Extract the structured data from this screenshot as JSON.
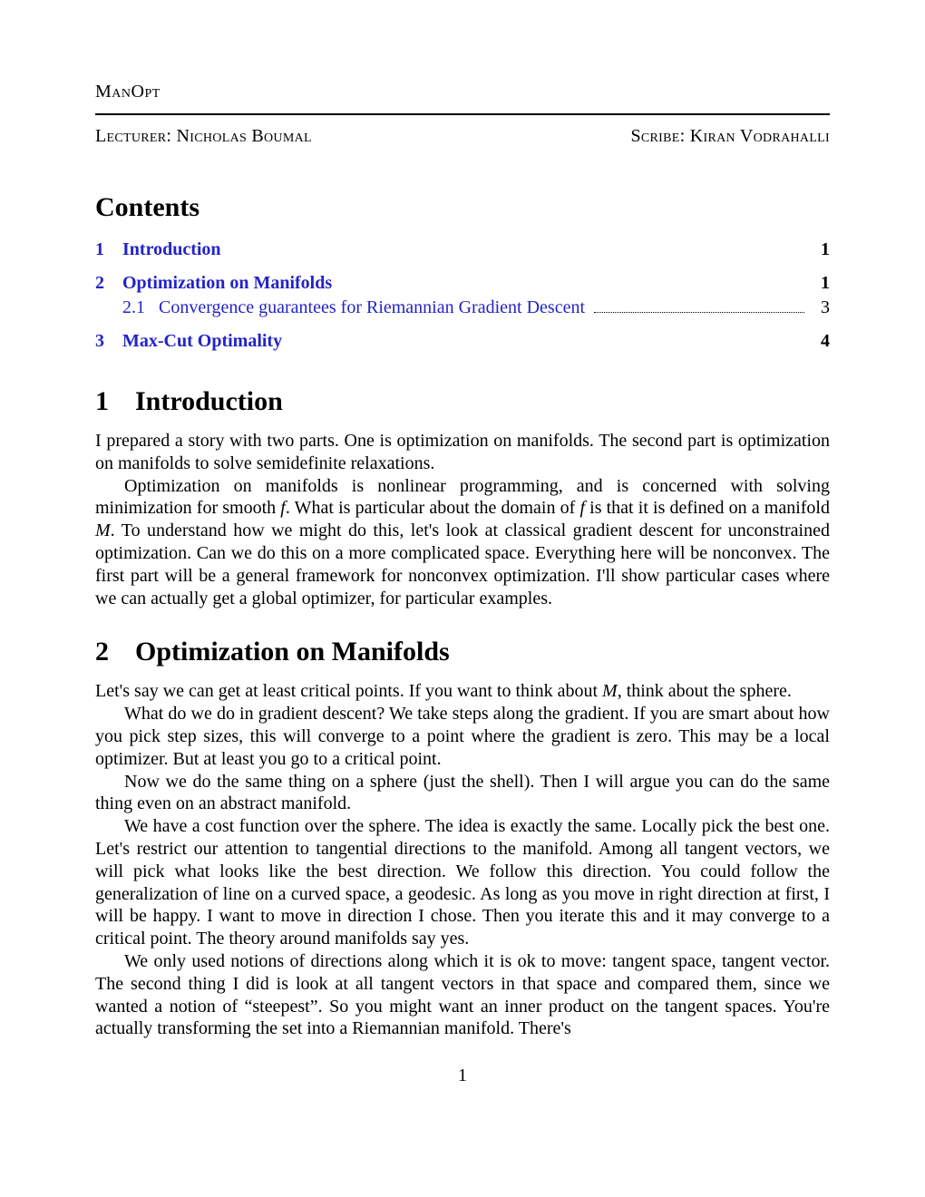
{
  "header": {
    "short_title": "ManOpt",
    "lecturer_label": "Lecturer: Nicholas Boumal",
    "scribe_label": "Scribe: Kiran Vodrahalli"
  },
  "contents": {
    "heading": "Contents",
    "items": [
      {
        "num": "1",
        "title": "Introduction",
        "page": "1",
        "sub": []
      },
      {
        "num": "2",
        "title": "Optimization on Manifolds",
        "page": "1",
        "sub": [
          {
            "num": "2.1",
            "title": "Convergence guarantees for Riemannian Gradient Descent",
            "page": "3"
          }
        ]
      },
      {
        "num": "3",
        "title": "Max-Cut Optimality",
        "page": "4",
        "sub": []
      }
    ]
  },
  "sections": {
    "s1": {
      "num": "1",
      "title": "Introduction",
      "p1": "I prepared a story with two parts. One is optimization on manifolds. The second part is optimization on manifolds to solve semidefinite relaxations.",
      "p2a": "Optimization on manifolds is nonlinear programming, and is concerned with solving minimization for smooth ",
      "p2b": ". What is particular about the domain of ",
      "p2c": " is that it is defined on a manifold ",
      "p2d": ". To understand how we might do this, let's look at classical gradient descent for unconstrained optimization. Can we do this on a more complicated space. Everything here will be nonconvex. The first part will be a general framework for nonconvex optimization. I'll show particular cases where we can actually get a global optimizer, for particular examples.",
      "f": "f",
      "M": "M"
    },
    "s2": {
      "num": "2",
      "title": "Optimization on Manifolds",
      "p1a": "Let's say we can get at least critical points. If you want to think about ",
      "p1b": ", think about the sphere.",
      "M": "M",
      "p2": "What do we do in gradient descent? We take steps along the gradient. If you are smart about how you pick step sizes, this will converge to a point where the gradient is zero. This may be a local optimizer. But at least you go to a critical point.",
      "p3": "Now we do the same thing on a sphere (just the shell). Then I will argue you can do the same thing even on an abstract manifold.",
      "p4": "We have a cost function over the sphere. The idea is exactly the same. Locally pick the best one. Let's restrict our attention to tangential directions to the manifold. Among all tangent vectors, we will pick what looks like the best direction. We follow this direction. You could follow the generalization of line on a curved space, a geodesic. As long as you move in right direction at first, I will be happy. I want to move in direction I chose. Then you iterate this and it may converge to a critical point. The theory around manifolds say yes.",
      "p5": "We only used notions of directions along which it is ok to move: tangent space, tangent vector. The second thing I did is look at all tangent vectors in that space and compared them, since we wanted a notion of “steepest”. So you might want an inner product on the tangent spaces. You're actually transforming the set into a Riemannian manifold. There's"
    }
  },
  "page_number": "1",
  "style": {
    "link_color": "#2323c8",
    "text_color": "#000000",
    "background_color": "#ffffff",
    "body_font_size_pt": 12,
    "heading_font_size_pt": 17,
    "font_family": "Times New Roman"
  }
}
